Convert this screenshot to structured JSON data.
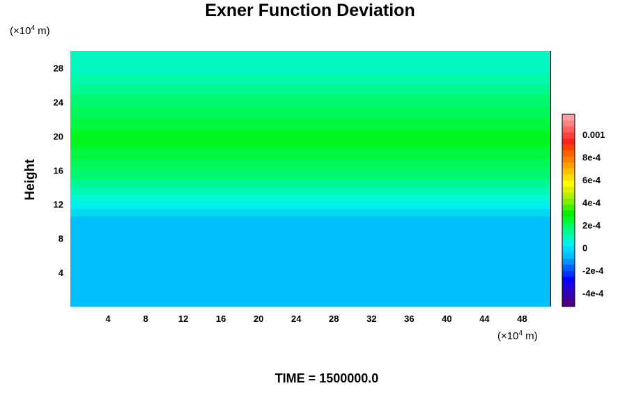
{
  "chart_data": {
    "type": "heatmap",
    "title": "Exner Function Deviation",
    "ylabel": "Height",
    "x_unit_base": "(×10",
    "x_unit_exp": "4",
    "x_unit_tail": " m)",
    "y_unit_base": "(×10",
    "y_unit_exp": "4",
    "y_unit_tail": " m)",
    "xlim": [
      0,
      51
    ],
    "ylim": [
      0,
      30
    ],
    "x_ticks": [
      "4",
      "8",
      "12",
      "16",
      "20",
      "24",
      "28",
      "32",
      "36",
      "40",
      "44",
      "48"
    ],
    "x_tick_values": [
      4,
      8,
      12,
      16,
      20,
      24,
      28,
      32,
      36,
      40,
      44,
      48
    ],
    "y_ticks": [
      "4",
      "8",
      "12",
      "16",
      "20",
      "24",
      "28"
    ],
    "y_tick_values": [
      4,
      8,
      12,
      16,
      20,
      24,
      28
    ],
    "bands": [
      {
        "y0": 0,
        "y1": 10.6,
        "value": -5e-05,
        "color": "#00bfff"
      },
      {
        "y0": 10.6,
        "y1": 11.5,
        "value": 1e-05,
        "color": "#00d9f0"
      },
      {
        "y0": 11.5,
        "y1": 12.3,
        "value": 5e-05,
        "color": "#00f0f0"
      },
      {
        "y0": 12.3,
        "y1": 13.2,
        "value": 0.0001,
        "color": "#00f8d8"
      },
      {
        "y0": 13.2,
        "y1": 14.1,
        "value": 0.00015,
        "color": "#00f8b0"
      },
      {
        "y0": 14.1,
        "y1": 15.0,
        "value": 0.0002,
        "color": "#00f890"
      },
      {
        "y0": 15.0,
        "y1": 16.1,
        "value": 0.00025,
        "color": "#00f870"
      },
      {
        "y0": 16.1,
        "y1": 17.3,
        "value": 0.0003,
        "color": "#00f858"
      },
      {
        "y0": 17.3,
        "y1": 18.6,
        "value": 0.00035,
        "color": "#00f840"
      },
      {
        "y0": 18.6,
        "y1": 20.8,
        "value": 0.0004,
        "color": "#00f820"
      },
      {
        "y0": 20.8,
        "y1": 22.1,
        "value": 0.00035,
        "color": "#00f840"
      },
      {
        "y0": 22.1,
        "y1": 23.5,
        "value": 0.0003,
        "color": "#00f858"
      },
      {
        "y0": 23.5,
        "y1": 24.9,
        "value": 0.00025,
        "color": "#00f870"
      },
      {
        "y0": 24.9,
        "y1": 26.1,
        "value": 0.0002,
        "color": "#00f890"
      },
      {
        "y0": 26.1,
        "y1": 27.4,
        "value": 0.00015,
        "color": "#00f8a8"
      },
      {
        "y0": 27.4,
        "y1": 30.0,
        "value": 0.0001,
        "color": "#00f8c0"
      }
    ],
    "colorbar": {
      "vmin": -0.00052,
      "vmax": 0.00118,
      "labels": [
        "0.001",
        "8e-4",
        "6e-4",
        "4e-4",
        "2e-4",
        "0",
        "-2e-4",
        "-4e-4"
      ],
      "label_values": [
        0.001,
        0.0008,
        0.0006,
        0.0004,
        0.0002,
        0,
        -0.0002,
        -0.0004
      ],
      "colors": [
        "#4b0082",
        "#3c00a0",
        "#2d00bf",
        "#1e00dd",
        "#0000ff",
        "#0030ff",
        "#0060ff",
        "#0090ff",
        "#00bfff",
        "#00d8ff",
        "#00f0f0",
        "#00f8c0",
        "#00f890",
        "#00f860",
        "#00f830",
        "#00f000",
        "#40f000",
        "#80f000",
        "#b0f000",
        "#e0f000",
        "#ffff00",
        "#ffe000",
        "#ffc000",
        "#ffa000",
        "#ff8000",
        "#ff6000",
        "#ff4000",
        "#ff2020",
        "#ff4040",
        "#ff6060",
        "#ff8080",
        "#ffa0a0"
      ]
    }
  },
  "footer": {
    "time_label": "TIME = 1500000.0"
  }
}
